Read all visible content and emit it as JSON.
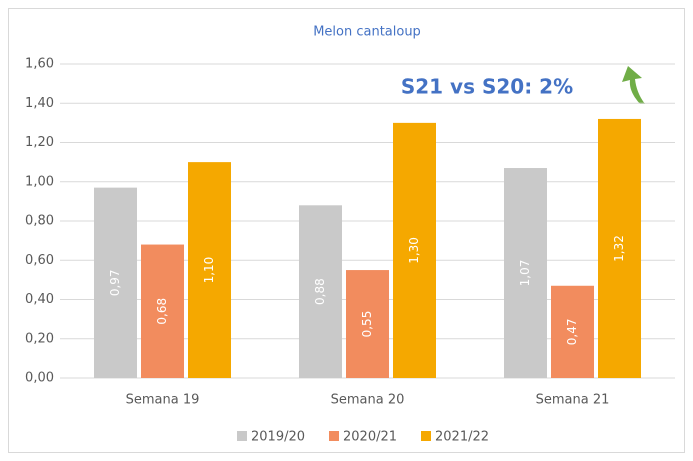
{
  "chart_data": {
    "type": "bar",
    "title": "Melon cantaloup",
    "annotation": "S21 vs S20: 2%",
    "categories": [
      "Semana 19",
      "Semana 20",
      "Semana 21"
    ],
    "series": [
      {
        "name": "2019/20",
        "color": "#c9c9c9",
        "values": [
          0.97,
          0.88,
          1.07
        ],
        "value_labels": [
          "0,97",
          "0,88",
          "1,07"
        ]
      },
      {
        "name": "2020/21",
        "color": "#f28c5e",
        "values": [
          0.68,
          0.55,
          0.47
        ],
        "value_labels": [
          "0,68",
          "0,55",
          "0,47"
        ]
      },
      {
        "name": "2021/22",
        "color": "#f5a800",
        "values": [
          1.1,
          1.3,
          1.32
        ],
        "value_labels": [
          "1,10",
          "1,30",
          "1,32"
        ]
      }
    ],
    "ylim": [
      0,
      1.6
    ],
    "yticks": [
      {
        "value": 0,
        "label": "0,00"
      },
      {
        "value": 0.2,
        "label": "0,20"
      },
      {
        "value": 0.4,
        "label": "0,40"
      },
      {
        "value": 0.6,
        "label": "0,60"
      },
      {
        "value": 0.8,
        "label": "0,80"
      },
      {
        "value": 1.0,
        "label": "1,00"
      },
      {
        "value": 1.2,
        "label": "1,20"
      },
      {
        "value": 1.4,
        "label": "1,40"
      },
      {
        "value": 1.6,
        "label": "1,60"
      }
    ],
    "grid": true,
    "legend": "bottom"
  }
}
